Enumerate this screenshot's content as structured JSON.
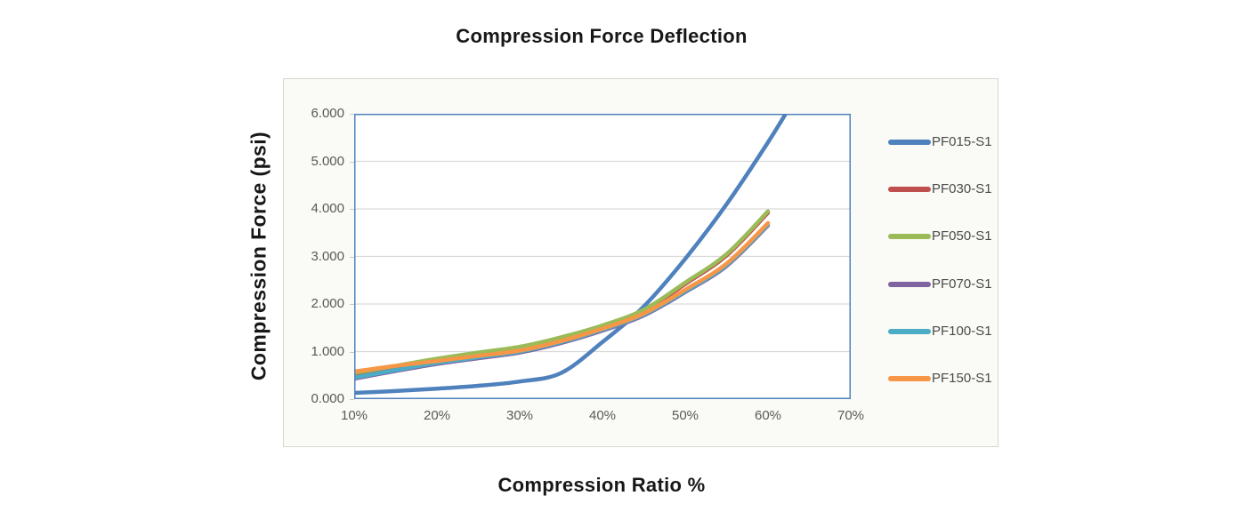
{
  "chart_data": {
    "type": "line",
    "title": "Compression Force Deflection",
    "xlabel": "Compression Ratio %",
    "ylabel": "Compression Force  (psi)",
    "xlim": [
      10,
      70
    ],
    "ylim": [
      0,
      6
    ],
    "x_tick_values": [
      10,
      20,
      30,
      40,
      50,
      60,
      70
    ],
    "x_tick_labels": [
      "10%",
      "20%",
      "30%",
      "40%",
      "50%",
      "60%",
      "70%"
    ],
    "y_tick_values": [
      0,
      1,
      2,
      3,
      4,
      5,
      6
    ],
    "y_tick_labels": [
      "0.000",
      "1.000",
      "2.000",
      "3.000",
      "4.000",
      "5.000",
      "6.000"
    ],
    "grid": "horizontal-only",
    "legend_position": "right",
    "plot_background": "#ffffff",
    "plot_border_color": "#4f81bd",
    "gridline_color": "#d9d9d9",
    "series": [
      {
        "name": "PF015-S1",
        "color": "#4f81bd",
        "x": [
          10,
          15,
          20,
          25,
          30,
          35,
          40,
          45,
          50,
          55,
          60,
          63
        ],
        "values": [
          0.13,
          0.17,
          0.22,
          0.28,
          0.37,
          0.55,
          1.2,
          1.95,
          2.95,
          4.1,
          5.4,
          6.25
        ]
      },
      {
        "name": "PF030-S1",
        "color": "#c0504d",
        "x": [
          10,
          15,
          20,
          25,
          30,
          35,
          40,
          45,
          50,
          55,
          60
        ],
        "values": [
          0.53,
          0.68,
          0.83,
          0.95,
          1.08,
          1.27,
          1.52,
          1.85,
          2.42,
          3.02,
          3.92
        ]
      },
      {
        "name": "PF050-S1",
        "color": "#9bbb59",
        "x": [
          10,
          15,
          20,
          25,
          30,
          35,
          40,
          45,
          50,
          55,
          60
        ],
        "values": [
          0.55,
          0.7,
          0.85,
          0.98,
          1.1,
          1.3,
          1.55,
          1.88,
          2.45,
          3.05,
          3.95
        ]
      },
      {
        "name": "PF070-S1",
        "color": "#8064a2",
        "x": [
          10,
          15,
          20,
          25,
          30,
          35,
          40,
          45,
          50,
          55,
          60
        ],
        "values": [
          0.43,
          0.59,
          0.74,
          0.86,
          0.98,
          1.18,
          1.44,
          1.76,
          2.25,
          2.8,
          3.65
        ]
      },
      {
        "name": "PF100-S1",
        "color": "#4bacc6",
        "x": [
          10,
          15,
          20,
          25,
          30,
          35,
          40,
          45,
          50,
          55,
          60
        ],
        "values": [
          0.45,
          0.61,
          0.76,
          0.88,
          1.0,
          1.2,
          1.46,
          1.78,
          2.27,
          2.82,
          3.67
        ]
      },
      {
        "name": "PF150-S1",
        "color": "#f79646",
        "x": [
          10,
          15,
          20,
          25,
          30,
          35,
          40,
          45,
          50,
          55,
          60
        ],
        "values": [
          0.58,
          0.7,
          0.8,
          0.91,
          1.02,
          1.22,
          1.48,
          1.8,
          2.3,
          2.85,
          3.7
        ]
      }
    ]
  }
}
